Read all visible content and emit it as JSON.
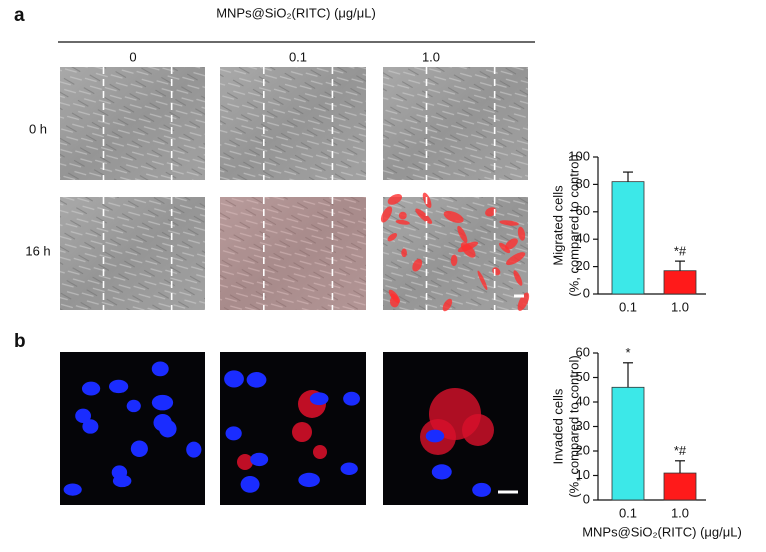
{
  "figure": {
    "panel_a": "a",
    "panel_b": "b",
    "header": "MNPs@SiO₂(RITC) (μg/μL)",
    "columns": [
      "0",
      "0.1",
      "1.0"
    ],
    "rows": [
      "0 h",
      "16 h"
    ]
  },
  "chart_data": [
    {
      "type": "bar",
      "categories": [
        "0.1",
        "1.0"
      ],
      "values": [
        82,
        17
      ],
      "errors": [
        7,
        7
      ],
      "colors": [
        "#3ce8e8",
        "#ff1a1a"
      ],
      "annotations": [
        null,
        "*#"
      ],
      "ylabel": [
        "Migrated cells",
        "(%, compared to control)"
      ],
      "ylim": [
        0,
        100
      ],
      "yticks": [
        0,
        20,
        40,
        60,
        80,
        100
      ]
    },
    {
      "type": "bar",
      "categories": [
        "0.1",
        "1.0"
      ],
      "values": [
        46,
        11
      ],
      "errors": [
        10,
        5
      ],
      "colors": [
        "#3ce8e8",
        "#ff1a1a"
      ],
      "annotations": [
        "*",
        "*#"
      ],
      "ylabel": [
        "Invaded cells",
        "(%, compared to control)"
      ],
      "xlabel": "MNPs@SiO₂(RITC) (μg/μL)",
      "ylim": [
        0,
        60
      ],
      "yticks": [
        0,
        10,
        20,
        30,
        40,
        50,
        60
      ]
    }
  ]
}
